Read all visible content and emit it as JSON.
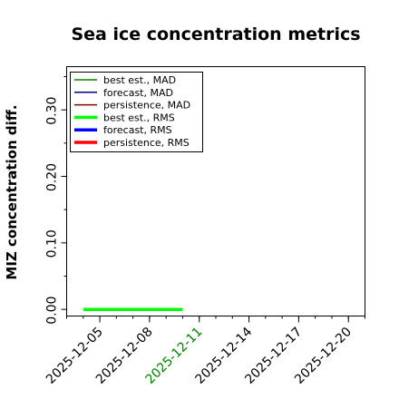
{
  "chart_data": {
    "type": "line",
    "title": "Sea ice concentration metrics",
    "xlabel": "",
    "ylabel": "MIZ concentration diff.",
    "x_ticks": [
      "2025-12-05",
      "2025-12-08",
      "2025-12-11",
      "2025-12-14",
      "2025-12-17",
      "2025-12-20"
    ],
    "x_tick_colors": [
      "#000000",
      "#000000",
      "#008000",
      "#000000",
      "#000000",
      "#000000"
    ],
    "x_range": [
      "2025-12-03",
      "2025-12-21"
    ],
    "y_ticks": [
      "0.00",
      "0.10",
      "0.20",
      "0.30"
    ],
    "ylim": [
      -0.01,
      0.365
    ],
    "grid": false,
    "legend_position": "top-left",
    "series": [
      {
        "name": "best est., MAD",
        "color": "#008000",
        "width": 1.5,
        "x": [],
        "y": []
      },
      {
        "name": "forecast,  MAD",
        "color": "#000080",
        "width": 1.5,
        "x": [],
        "y": []
      },
      {
        "name": "persistence, MAD",
        "color": "#800000",
        "width": 1.5,
        "x": [],
        "y": []
      },
      {
        "name": "best est., RMS",
        "color": "#00ff00",
        "width": 3.5,
        "x": [
          "2025-12-04",
          "2025-12-05",
          "2025-12-06",
          "2025-12-07",
          "2025-12-08",
          "2025-12-09",
          "2025-12-10"
        ],
        "y": [
          0,
          0,
          0,
          0,
          0,
          0,
          0
        ]
      },
      {
        "name": "forecast,  RMS",
        "color": "#0000ff",
        "width": 3.5,
        "x": [],
        "y": []
      },
      {
        "name": "persistence, RMS",
        "color": "#ff0000",
        "width": 3.5,
        "x": [],
        "y": []
      }
    ]
  }
}
